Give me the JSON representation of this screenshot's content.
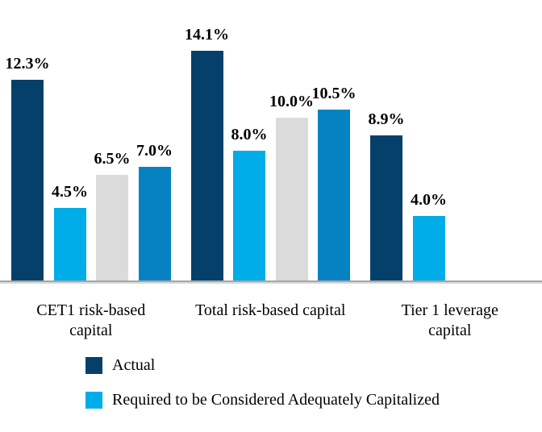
{
  "chart_data": {
    "type": "bar",
    "title": "",
    "xlabel": "",
    "ylabel": "",
    "unit": "%",
    "ylim": [
      0,
      17.2
    ],
    "grid": false,
    "y_axis_visible": false,
    "legend_position": "bottom-left",
    "categories": [
      "CET1 risk-based capital",
      "Total risk-based capital",
      "Tier 1 leverage capital"
    ],
    "category_lines": [
      [
        "CET1 risk-based",
        "capital"
      ],
      [
        "Total risk-based capital"
      ],
      [
        "Tier 1 leverage",
        "capital"
      ]
    ],
    "series": [
      {
        "name": "Actual",
        "color": "#05406B",
        "values": [
          12.3,
          14.1,
          8.9
        ],
        "labels": [
          "12.3%",
          "14.1%",
          "8.9%"
        ]
      },
      {
        "name": "Required to be Considered Adequately Capitalized",
        "color": "#00ADE8",
        "values": [
          4.5,
          8.0,
          4.0
        ],
        "labels": [
          "4.5%",
          "8.0%",
          "4.0%"
        ]
      },
      {
        "name": "",
        "color": "#DBDBDB",
        "values": [
          6.5,
          10.0,
          null
        ],
        "labels": [
          "6.5%",
          "10.0%",
          ""
        ]
      },
      {
        "name": "",
        "color": "#0682C3",
        "values": [
          7.0,
          10.5,
          null
        ],
        "labels": [
          "7.0%",
          "10.5%",
          ""
        ]
      }
    ],
    "legend": [
      {
        "label": "Actual",
        "color": "#05406B"
      },
      {
        "label": "Required to be Considered Adequately Capitalized",
        "color": "#00ADE8"
      }
    ]
  },
  "colors": {
    "background": "#FFFFFF",
    "axis_line": "#A6A6A6",
    "axis_line_shadow": "#D9D9D9",
    "text": "#000000"
  }
}
